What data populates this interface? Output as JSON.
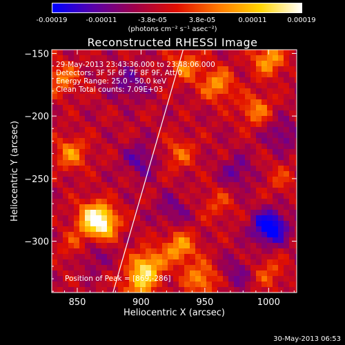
{
  "colorbar": {
    "ticks": [
      "-0.00019",
      "-0.00011",
      "-3.8e-05",
      "3.8e-05",
      "0.00011",
      "0.00019"
    ],
    "units": "(photons cm⁻² s⁻¹ asec⁻²)",
    "colormap": [
      "#0000ff",
      "#5a00a8",
      "#a0004a",
      "#e11000",
      "#ff7a00",
      "#ffd400",
      "#ffffff"
    ]
  },
  "footer": {
    "date": "30-May-2013 06:53"
  },
  "chart_data": {
    "type": "heatmap",
    "title": "Reconstructed RHESSI Image",
    "xlabel": "Heliocentric X (arcsec)",
    "ylabel": "Heliocentric Y (arcsec)",
    "xlim": [
      830,
      1022
    ],
    "ylim": [
      -341,
      -147
    ],
    "xticks": [
      850,
      900,
      950,
      1000
    ],
    "yticks": [
      -150,
      -200,
      -250,
      -300
    ],
    "annotations": [
      "29-May-2013 23:43:36.000 to 23:48:06.000",
      "Detectors: 3F 5F 6F 7F 8F 9F, Att 0",
      "Energy Range: 25.0 - 50.0 keV",
      "Clean    Total counts: 7.09E+03"
    ],
    "peak_label": "Position of Peak = [869,-286]",
    "peak": [
      869,
      -286
    ],
    "limb_line": [
      [
        878,
        -341
      ],
      [
        933,
        -147
      ]
    ],
    "value_range": [
      -0.00019,
      0.00019
    ],
    "sources": [
      {
        "x": 869,
        "y": -286,
        "value": 0.00019
      },
      {
        "x": 862,
        "y": -280,
        "value": 0.00012
      },
      {
        "x": 905,
        "y": -320,
        "value": 0.00016
      },
      {
        "x": 930,
        "y": -305,
        "value": 0.00013
      },
      {
        "x": 947,
        "y": -330,
        "value": 0.00012
      },
      {
        "x": 898,
        "y": -335,
        "value": 0.00012
      },
      {
        "x": 960,
        "y": -175,
        "value": 0.00012
      },
      {
        "x": 935,
        "y": -160,
        "value": 0.0001
      },
      {
        "x": 1000,
        "y": -155,
        "value": 0.00013
      },
      {
        "x": 990,
        "y": -195,
        "value": 0.0001
      },
      {
        "x": 838,
        "y": -170,
        "value": 0.0001
      },
      {
        "x": 845,
        "y": -230,
        "value": 0.00011
      },
      {
        "x": 850,
        "y": -305,
        "value": 8e-05
      },
      {
        "x": 930,
        "y": -230,
        "value": 8e-05
      },
      {
        "x": 960,
        "y": -270,
        "value": 6e-05
      },
      {
        "x": 1010,
        "y": -250,
        "value": 5e-05
      },
      {
        "x": 1000,
        "y": -325,
        "value": 7e-05
      }
    ],
    "negatives": [
      {
        "x": 1001,
        "y": -289,
        "value": -0.00019
      },
      {
        "x": 900,
        "y": -235,
        "value": -8e-05
      },
      {
        "x": 860,
        "y": -310,
        "value": -8e-05
      },
      {
        "x": 890,
        "y": -175,
        "value": -7e-05
      },
      {
        "x": 975,
        "y": -245,
        "value": -7e-05
      },
      {
        "x": 1010,
        "y": -215,
        "value": -7e-05
      },
      {
        "x": 925,
        "y": -275,
        "value": -6e-05
      },
      {
        "x": 975,
        "y": -325,
        "value": -6e-05
      }
    ]
  }
}
